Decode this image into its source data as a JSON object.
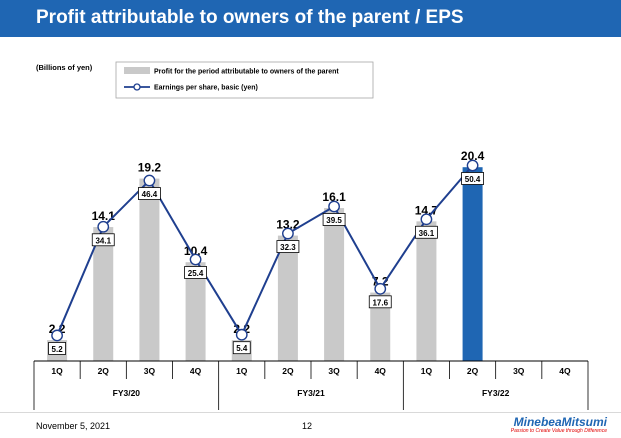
{
  "header": {
    "title": "Profit attributable to owners of the parent / EPS"
  },
  "footer": {
    "date": "November 5, 2021",
    "page": "12"
  },
  "logo": {
    "name": "MinebeaMitsumi",
    "tagline": "Passion to Create Value through Difference"
  },
  "colors": {
    "title_bar": "#1f66b3",
    "bar_grey": "#c9c9c9",
    "bar_highlight": "#1f66b3",
    "line": "#1f3f8f"
  },
  "chart_data": {
    "type": "bar",
    "unit_label": "(Billions of yen)",
    "categories": [
      "1Q",
      "2Q",
      "3Q",
      "4Q",
      "1Q",
      "2Q",
      "3Q",
      "4Q",
      "1Q",
      "2Q",
      "3Q",
      "4Q"
    ],
    "groups": [
      {
        "label": "FY3/20",
        "count": 4
      },
      {
        "label": "FY3/21",
        "count": 4
      },
      {
        "label": "FY3/22",
        "count": 4
      }
    ],
    "series": [
      {
        "name": "Profit for the period attributable to owners of the parent",
        "type": "bar",
        "values": [
          2.2,
          14.1,
          19.2,
          10.4,
          2.2,
          13.2,
          16.1,
          7.2,
          14.7,
          20.4,
          null,
          null
        ],
        "labels": [
          "2.2",
          "14.1",
          "19.2",
          "10.4",
          "2.2",
          "13.2",
          "16.1",
          "7.2",
          "14.7",
          "20.4",
          "",
          ""
        ],
        "highlight_index": 9
      },
      {
        "name": "Earnings per share, basic (yen)",
        "type": "line",
        "values": [
          5.2,
          34.1,
          46.4,
          25.4,
          5.4,
          32.3,
          39.5,
          17.6,
          36.1,
          50.4,
          null,
          null
        ],
        "labels": [
          "5.2",
          "34.1",
          "46.4",
          "25.4",
          "5.4",
          "32.3",
          "39.5",
          "17.6",
          "36.1",
          "50.4",
          "",
          ""
        ]
      }
    ],
    "legend": "top-left"
  }
}
